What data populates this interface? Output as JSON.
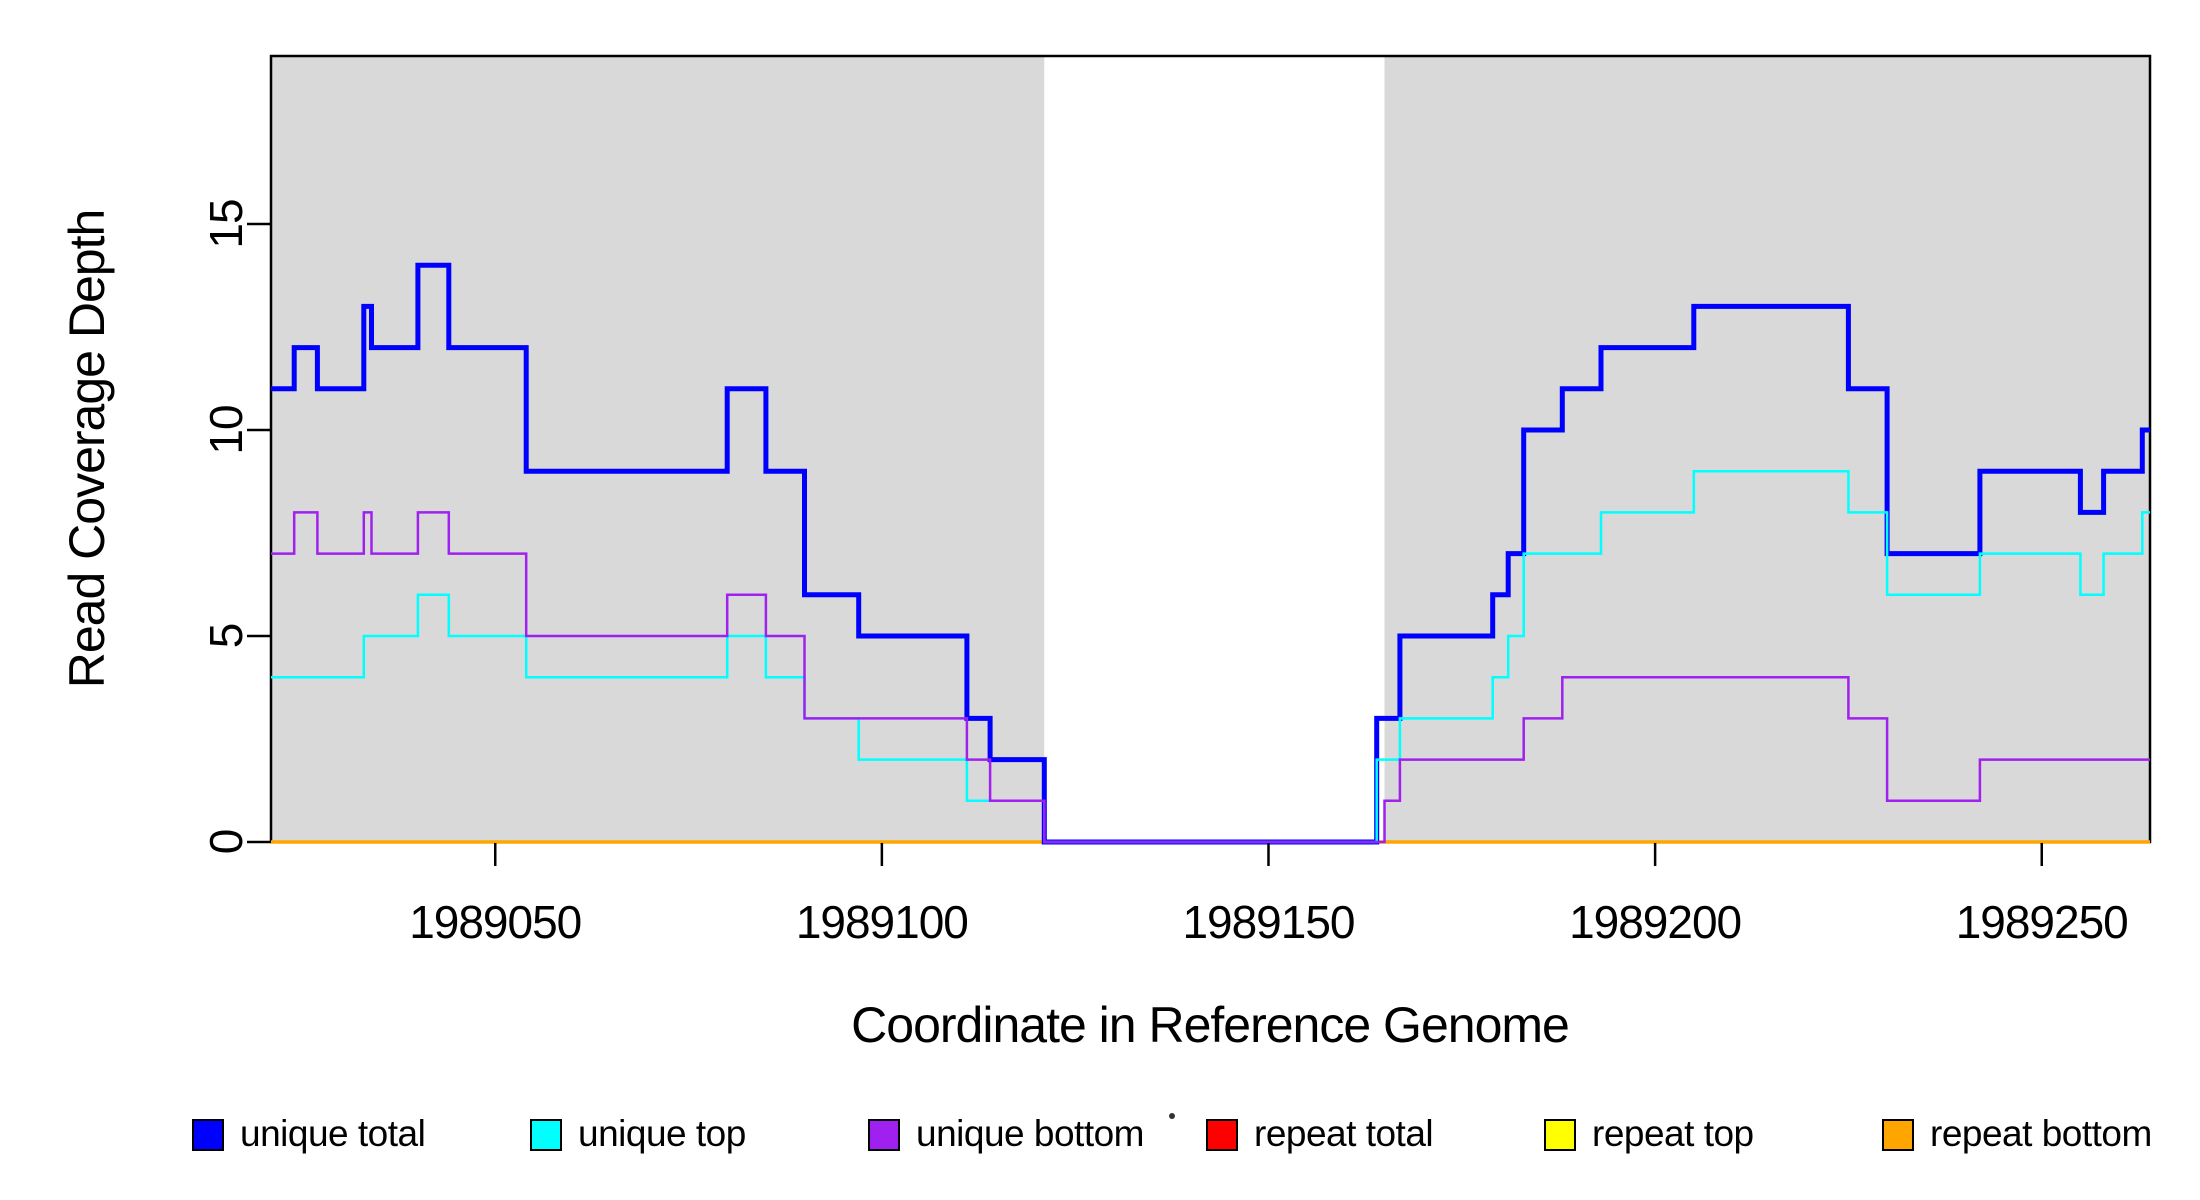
{
  "figure": {
    "xlabel": "Coordinate in Reference Genome",
    "ylabel": "Read Coverage Depth"
  },
  "chart_data": {
    "type": "line",
    "subtype": "step",
    "title": "",
    "xlabel": "Coordinate in Reference Genome",
    "ylabel": "Read Coverage Depth",
    "xlim": [
      1989021,
      1989264
    ],
    "ylim": [
      0,
      19
    ],
    "x_ticks": [
      1989050,
      1989100,
      1989150,
      1989200,
      1989250
    ],
    "y_ticks": [
      0,
      5,
      10,
      15
    ],
    "grid": false,
    "plot_background": "#ffffff",
    "band_color": "#d9d9d9",
    "shaded_bands": [
      {
        "x_start": 1989021,
        "x_end": 1989121
      },
      {
        "x_start": 1989165,
        "x_end": 1989264
      }
    ],
    "series": [
      {
        "name": "repeat total",
        "color": "#ff0000",
        "line_width": 2.5,
        "points": [
          [
            1989021,
            0
          ],
          [
            1989264,
            0
          ]
        ]
      },
      {
        "name": "repeat top",
        "color": "#ffff00",
        "line_width": 2.5,
        "points": [
          [
            1989021,
            0
          ],
          [
            1989264,
            0
          ]
        ]
      },
      {
        "name": "repeat bottom",
        "color": "#ffa500",
        "line_width": 3.5,
        "points": [
          [
            1989021,
            0
          ],
          [
            1989264,
            0
          ]
        ]
      },
      {
        "name": "unique total",
        "color": "#0000ff",
        "line_width": 5,
        "points": [
          [
            1989021,
            11
          ],
          [
            1989024,
            12
          ],
          [
            1989027,
            11
          ],
          [
            1989033,
            13
          ],
          [
            1989034,
            12
          ],
          [
            1989040,
            14
          ],
          [
            1989044,
            12
          ],
          [
            1989054,
            9
          ],
          [
            1989080,
            11
          ],
          [
            1989085,
            9
          ],
          [
            1989090,
            6
          ],
          [
            1989097,
            5
          ],
          [
            1989111,
            3
          ],
          [
            1989114,
            2
          ],
          [
            1989121,
            0
          ],
          [
            1989164,
            3
          ],
          [
            1989167,
            5
          ],
          [
            1989179,
            6
          ],
          [
            1989181,
            7
          ],
          [
            1989183,
            10
          ],
          [
            1989188,
            11
          ],
          [
            1989193,
            12
          ],
          [
            1989205,
            13
          ],
          [
            1989225,
            11
          ],
          [
            1989230,
            7
          ],
          [
            1989242,
            9
          ],
          [
            1989255,
            8
          ],
          [
            1989258,
            9
          ],
          [
            1989263,
            10
          ],
          [
            1989264,
            10
          ]
        ]
      },
      {
        "name": "unique top",
        "color": "#00ffff",
        "line_width": 2.5,
        "points": [
          [
            1989021,
            4
          ],
          [
            1989033,
            5
          ],
          [
            1989040,
            6
          ],
          [
            1989044,
            5
          ],
          [
            1989054,
            4
          ],
          [
            1989080,
            5
          ],
          [
            1989085,
            4
          ],
          [
            1989090,
            3
          ],
          [
            1989097,
            2
          ],
          [
            1989111,
            1
          ],
          [
            1989121,
            0
          ],
          [
            1989164,
            2
          ],
          [
            1989167,
            3
          ],
          [
            1989179,
            4
          ],
          [
            1989181,
            5
          ],
          [
            1989183,
            7
          ],
          [
            1989193,
            8
          ],
          [
            1989205,
            9
          ],
          [
            1989225,
            8
          ],
          [
            1989230,
            6
          ],
          [
            1989242,
            7
          ],
          [
            1989255,
            6
          ],
          [
            1989258,
            7
          ],
          [
            1989263,
            8
          ],
          [
            1989264,
            8
          ]
        ]
      },
      {
        "name": "unique bottom",
        "color": "#a020f0",
        "line_width": 2.5,
        "points": [
          [
            1989021,
            7
          ],
          [
            1989024,
            8
          ],
          [
            1989027,
            7
          ],
          [
            1989033,
            8
          ],
          [
            1989034,
            7
          ],
          [
            1989040,
            8
          ],
          [
            1989044,
            7
          ],
          [
            1989054,
            5
          ],
          [
            1989080,
            6
          ],
          [
            1989085,
            5
          ],
          [
            1989090,
            3
          ],
          [
            1989111,
            2
          ],
          [
            1989114,
            1
          ],
          [
            1989121,
            0
          ],
          [
            1989165,
            1
          ],
          [
            1989167,
            2
          ],
          [
            1989183,
            3
          ],
          [
            1989188,
            4
          ],
          [
            1989225,
            3
          ],
          [
            1989230,
            1
          ],
          [
            1989242,
            2
          ],
          [
            1989264,
            2
          ]
        ]
      }
    ],
    "legend": {
      "position": "bottom",
      "entries": [
        {
          "label": "unique total",
          "color": "#0000ff"
        },
        {
          "label": "unique top",
          "color": "#00ffff"
        },
        {
          "label": "unique bottom",
          "color": "#a020f0"
        },
        {
          "label": "repeat total",
          "color": "#ff0000"
        },
        {
          "label": "repeat top",
          "color": "#ffff00"
        },
        {
          "label": "repeat bottom",
          "color": "#ffa500"
        }
      ],
      "stray_dot": true
    }
  }
}
